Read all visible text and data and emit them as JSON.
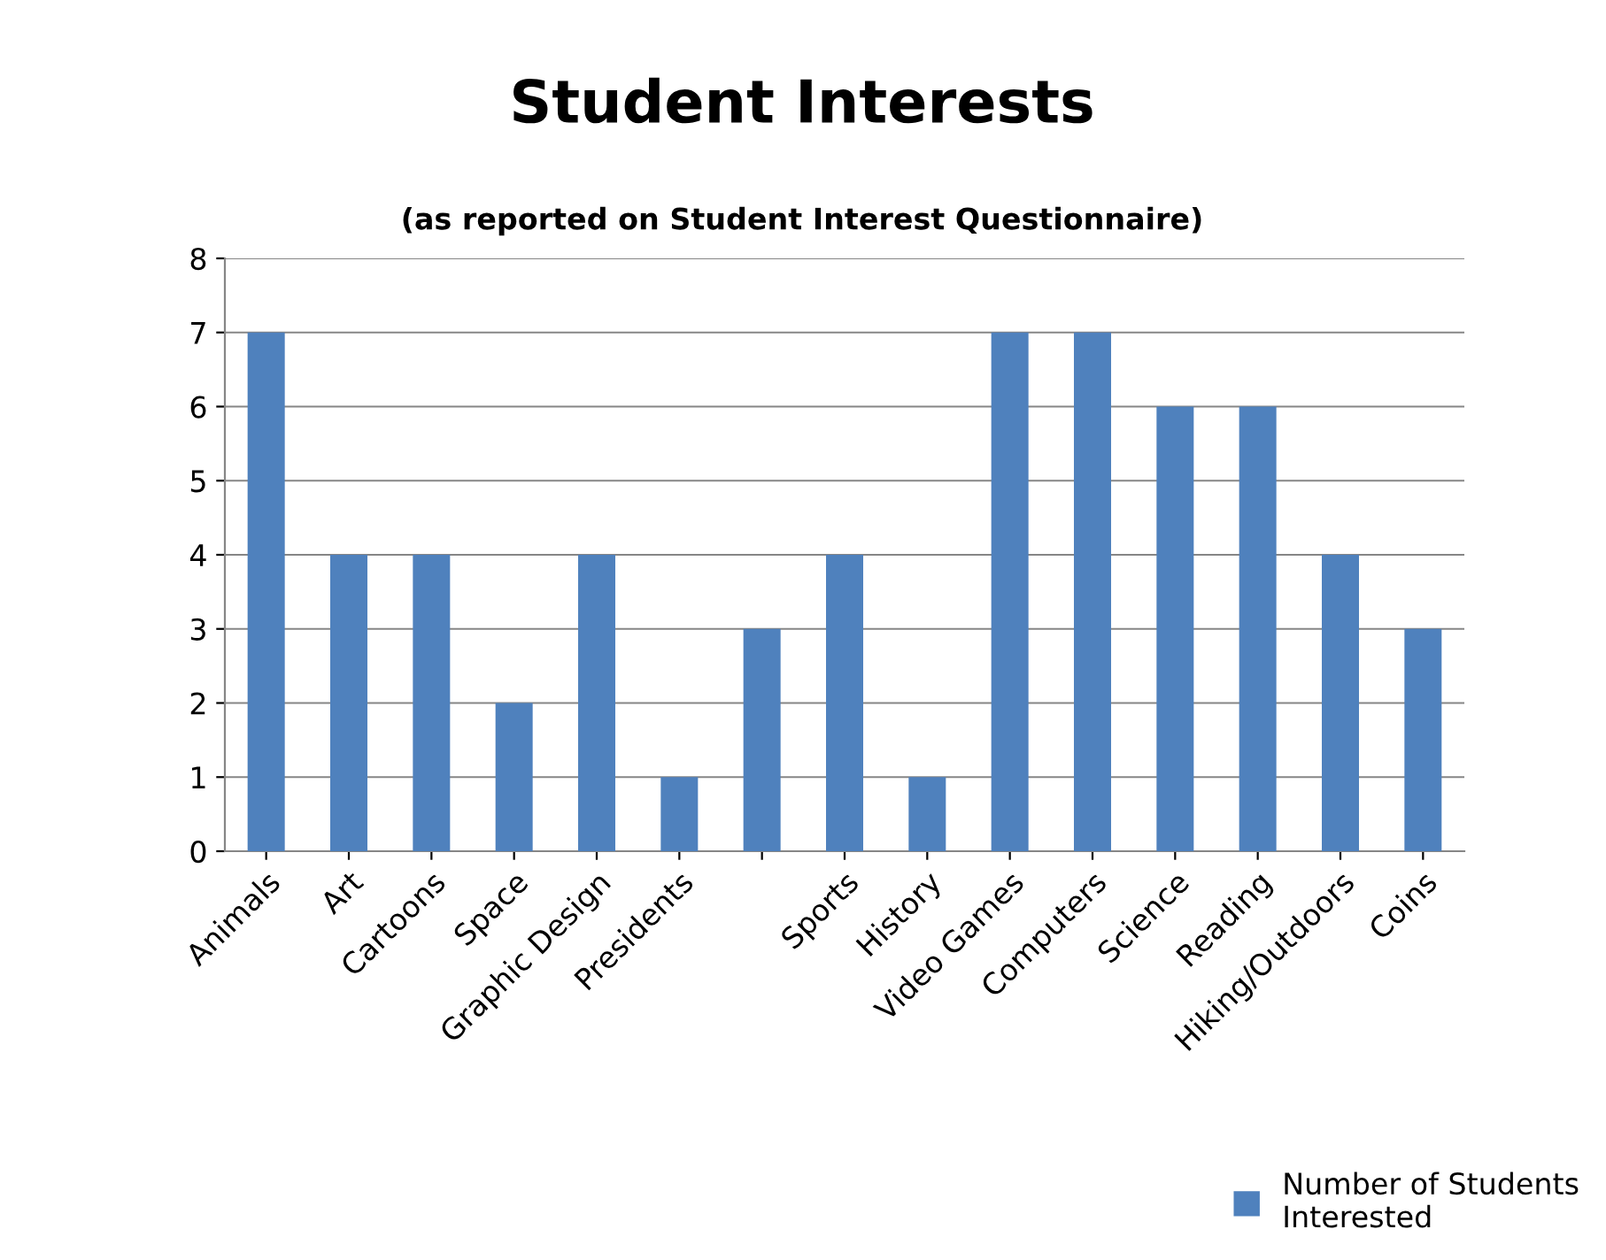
{
  "chart_data": {
    "type": "bar",
    "title": "Student Interests",
    "subtitle": "(as reported on Student Interest Questionnaire)",
    "categories": [
      "Animals",
      "Art",
      "Cartoons",
      "Space",
      "Graphic Design",
      "Presidents",
      null,
      "Sports",
      "History",
      "Video Games",
      "Computers",
      "Science",
      "Reading",
      "Hiking/Outdoors",
      "Coins"
    ],
    "series": [
      {
        "name": "Number of Students Interested",
        "color": "#4f81bd",
        "values": [
          7,
          4,
          4,
          2,
          4,
          1,
          3,
          4,
          1,
          7,
          7,
          6,
          6,
          4,
          3
        ]
      }
    ],
    "ylim": [
      0,
      8
    ],
    "yticks": [
      0,
      1,
      2,
      3,
      4,
      5,
      6,
      7,
      8
    ],
    "grid": "y",
    "legend": "bottom right"
  }
}
